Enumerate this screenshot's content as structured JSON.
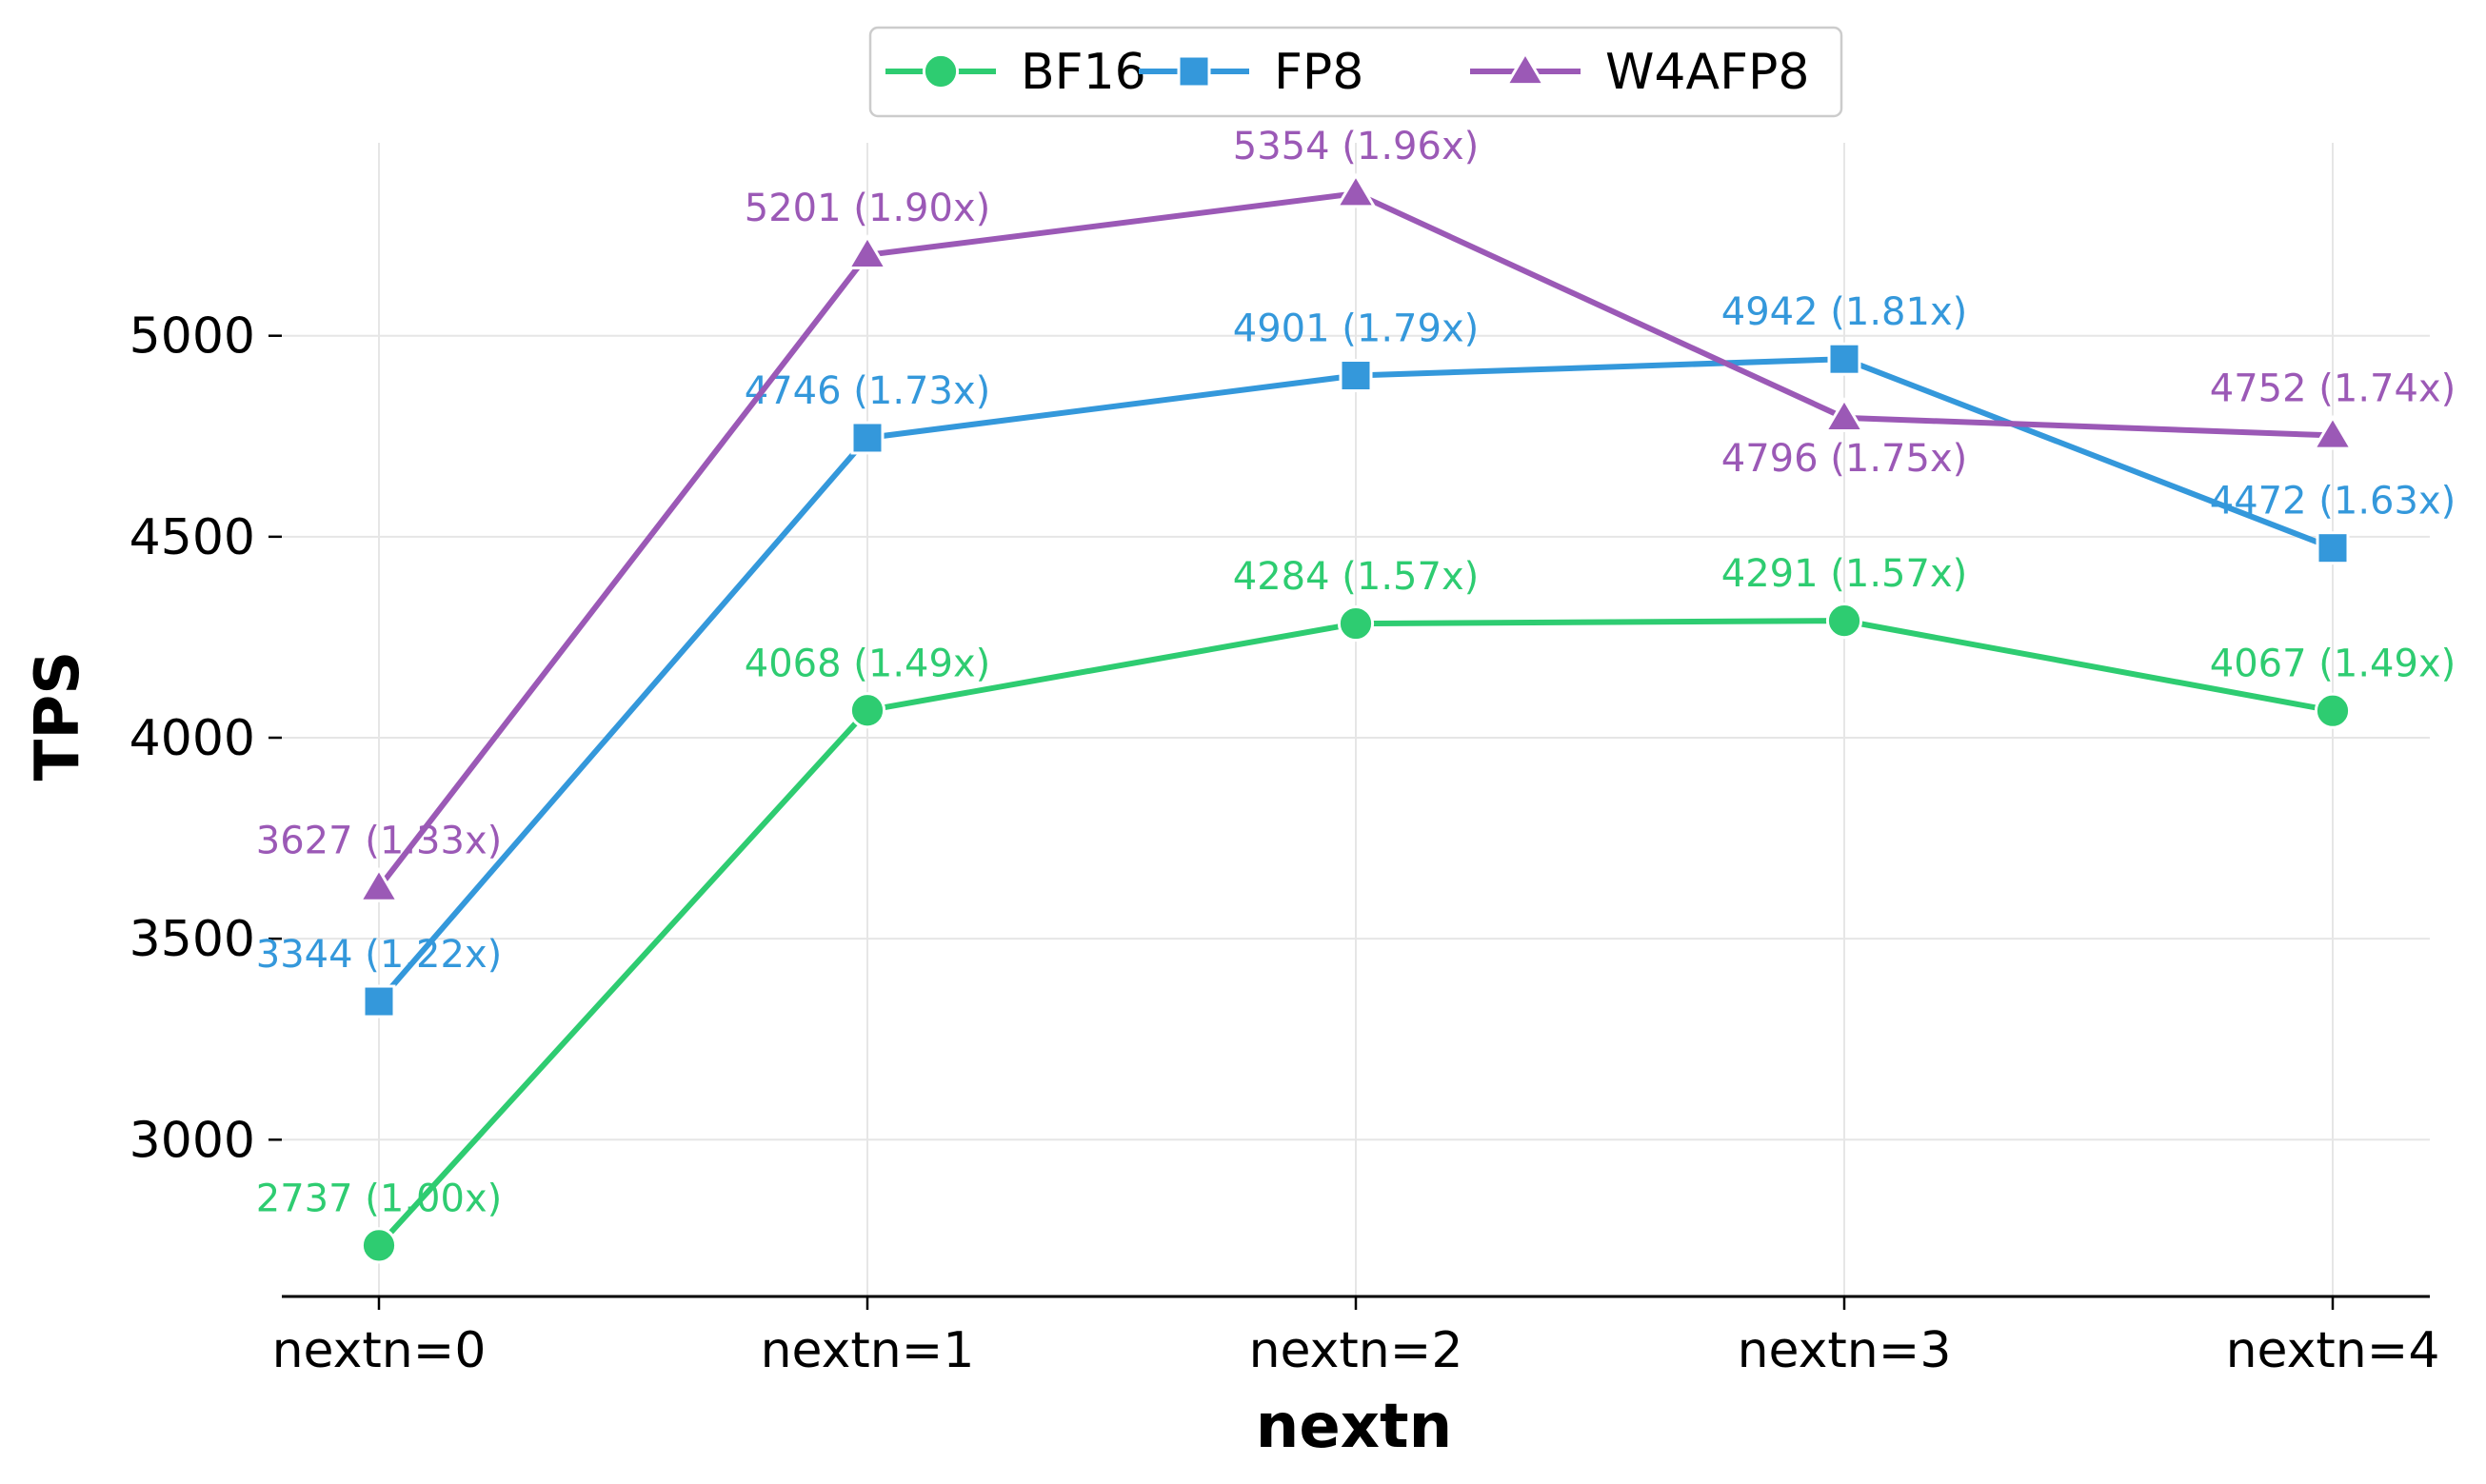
{
  "chart_data": {
    "type": "line",
    "title": "",
    "xlabel": "nextn",
    "ylabel": "TPS",
    "categories": [
      "nextn=0",
      "nextn=1",
      "nextn=2",
      "nextn=3",
      "nextn=4"
    ],
    "yticks": [
      3000,
      3500,
      4000,
      4500,
      5000
    ],
    "ylim": [
      2610,
      5480
    ],
    "grid": true,
    "legend_position": "top-center",
    "series": [
      {
        "name": "BF16",
        "color": "#2ecc71",
        "marker": "circle",
        "values": [
          2737,
          4068,
          4284,
          4291,
          4067
        ],
        "labels": [
          "2737 (1.00x)",
          "4068 (1.49x)",
          "4284 (1.57x)",
          "4291 (1.57x)",
          "4067 (1.49x)"
        ]
      },
      {
        "name": "FP8",
        "color": "#3498db",
        "marker": "square",
        "values": [
          3344,
          4746,
          4901,
          4942,
          4472
        ],
        "labels": [
          "3344 (1.22x)",
          "4746 (1.73x)",
          "4901 (1.79x)",
          "4942 (1.81x)",
          "4472 (1.63x)"
        ]
      },
      {
        "name": "W4AFP8",
        "color": "#9b59b6",
        "marker": "triangle",
        "values": [
          3627,
          5201,
          5354,
          4796,
          4752
        ],
        "labels": [
          "3627 (1.33x)",
          "5201 (1.90x)",
          "5354 (1.96x)",
          "4796 (1.75x)",
          "4752 (1.74x)"
        ],
        "label_below": [
          false,
          false,
          false,
          true,
          false
        ]
      }
    ]
  }
}
